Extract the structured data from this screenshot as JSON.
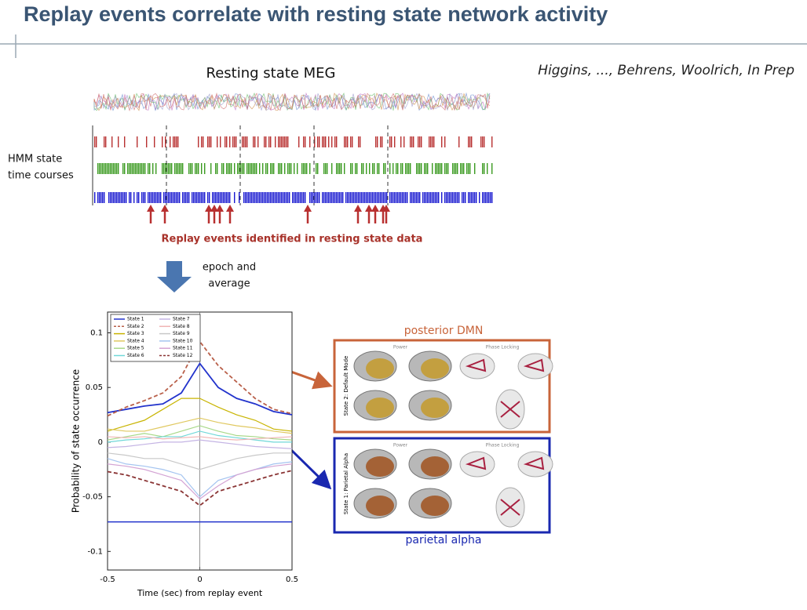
{
  "slide": {
    "title": "Replay events correlate with resting state network activity",
    "citation": "Higgins, ..., Behrens, Woolrich, In Prep"
  },
  "pipeline": {
    "meg_title": "Resting state MEG",
    "hmm_label": [
      "HMM state",
      "time courses"
    ],
    "replay_caption": "Replay events identified in resting state data",
    "arrow_label": [
      "epoch and",
      "average"
    ]
  },
  "networks": [
    {
      "title": "posterior DMN",
      "row_label": "State 2: Default Mode",
      "power": "Power",
      "phase": "Phase Locking"
    },
    {
      "title": "parietal alpha",
      "row_label": "State 1: Parietal Alpha",
      "power": "Power",
      "phase": "Phase Locking"
    }
  ],
  "chart_data": {
    "type": "line",
    "xlabel": "Time (sec) from replay event",
    "ylabel": "Probability of state occurrence",
    "xlim": [
      -0.5,
      0.5
    ],
    "xticks": [
      -0.5,
      0,
      0.5
    ],
    "ylim": [
      -0.117,
      0.119
    ],
    "yticks": [
      -0.1,
      -0.05,
      0,
      0.05,
      0.1
    ],
    "threshold_line": -0.073,
    "x": [
      -0.5,
      -0.4,
      -0.3,
      -0.2,
      -0.1,
      0,
      0.1,
      0.2,
      0.3,
      0.4,
      0.5
    ],
    "series": [
      {
        "name": "State 1",
        "color": "#2233cc",
        "style": "solid",
        "values": [
          0.027,
          0.03,
          0.033,
          0.035,
          0.045,
          0.072,
          0.05,
          0.04,
          0.035,
          0.028,
          0.025
        ]
      },
      {
        "name": "State 2",
        "color": "#b9604a",
        "style": "dashed",
        "values": [
          0.024,
          0.032,
          0.038,
          0.045,
          0.06,
          0.092,
          0.07,
          0.055,
          0.04,
          0.03,
          0.026
        ]
      },
      {
        "name": "State 3",
        "color": "#c8b400",
        "style": "solid",
        "values": [
          0.01,
          0.015,
          0.02,
          0.03,
          0.04,
          0.04,
          0.032,
          0.025,
          0.02,
          0.012,
          0.01
        ]
      },
      {
        "name": "State 4",
        "color": "#e0c860",
        "style": "solid",
        "values": [
          0.012,
          0.01,
          0.01,
          0.014,
          0.018,
          0.022,
          0.018,
          0.015,
          0.013,
          0.01,
          0.008
        ]
      },
      {
        "name": "State 5",
        "color": "#a8d888",
        "style": "solid",
        "values": [
          0.002,
          0.005,
          0.008,
          0.005,
          0.01,
          0.015,
          0.01,
          0.006,
          0.005,
          0.003,
          0.002
        ]
      },
      {
        "name": "State 6",
        "color": "#70d8d8",
        "style": "solid",
        "values": [
          0,
          0.002,
          0.003,
          0.005,
          0.005,
          0.01,
          0.006,
          0.004,
          0.002,
          0,
          0
        ]
      },
      {
        "name": "State 7",
        "color": "#c4b4e4",
        "style": "solid",
        "values": [
          -0.005,
          -0.004,
          -0.002,
          0,
          0,
          0.002,
          0,
          -0.002,
          -0.004,
          -0.005,
          -0.006
        ]
      },
      {
        "name": "State 8",
        "color": "#f0b4b4",
        "style": "solid",
        "values": [
          0.005,
          0.004,
          0.005,
          0.003,
          0.004,
          0.005,
          0.003,
          0.002,
          0.003,
          0.004,
          0.005
        ]
      },
      {
        "name": "State 9",
        "color": "#c8c8c8",
        "style": "solid",
        "values": [
          -0.01,
          -0.012,
          -0.015,
          -0.015,
          -0.02,
          -0.025,
          -0.02,
          -0.015,
          -0.012,
          -0.01,
          -0.01
        ]
      },
      {
        "name": "State 10",
        "color": "#a4c4f0",
        "style": "solid",
        "values": [
          -0.015,
          -0.02,
          -0.022,
          -0.025,
          -0.03,
          -0.05,
          -0.035,
          -0.03,
          -0.025,
          -0.02,
          -0.018
        ]
      },
      {
        "name": "State 11",
        "color": "#d4a4d4",
        "style": "solid",
        "values": [
          -0.02,
          -0.022,
          -0.025,
          -0.03,
          -0.035,
          -0.052,
          -0.04,
          -0.03,
          -0.025,
          -0.022,
          -0.02
        ]
      },
      {
        "name": "State 12",
        "color": "#8a3434",
        "style": "dashed",
        "values": [
          -0.027,
          -0.03,
          -0.035,
          -0.04,
          -0.045,
          -0.058,
          -0.045,
          -0.04,
          -0.035,
          -0.03,
          -0.026
        ]
      }
    ]
  }
}
